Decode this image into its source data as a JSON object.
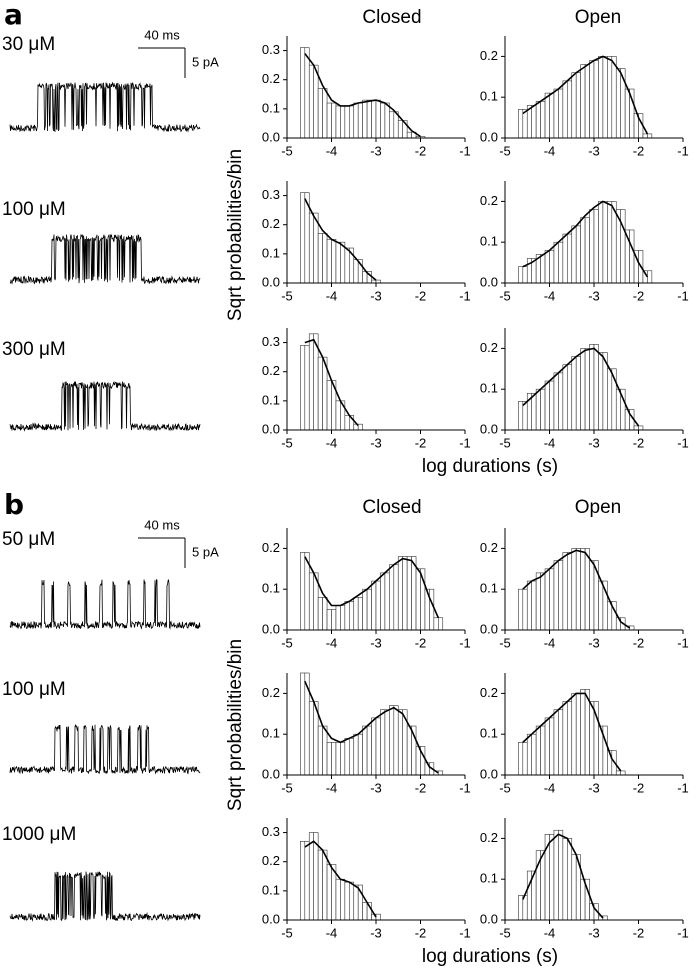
{
  "figure": {
    "panels": [
      {
        "label": "a",
        "scale_time": "40 ms",
        "scale_current": "5 pA",
        "column_titles": [
          "Closed",
          "Open"
        ],
        "concentrations": [
          "30 μM",
          "100 μM",
          "300 μM"
        ],
        "y_label": "Sqrt probabilities/bin",
        "x_label": "log durations (s)"
      },
      {
        "label": "b",
        "scale_time": "40 ms",
        "scale_current": "5 pA",
        "column_titles": [
          "Closed",
          "Open"
        ],
        "concentrations": [
          "50 μM",
          "100 μM",
          "1000 μM"
        ],
        "y_label": "Sqrt probabilities/bin",
        "x_label": "log durations (s)"
      }
    ]
  },
  "chart_data": [
    {
      "type": "histogram",
      "bins": [
        -4.7,
        -4.5,
        -4.3,
        -4.1,
        -3.9,
        -3.7,
        -3.5,
        -3.3,
        -3.1,
        -2.9,
        -2.7,
        -2.5,
        -2.3,
        -2.1,
        -1.9
      ],
      "values": [
        0.31,
        0.25,
        0.17,
        0.12,
        0.11,
        0.11,
        0.12,
        0.13,
        0.13,
        0.12,
        0.09,
        0.06,
        0.02,
        0.005
      ],
      "fit": {
        "x": [
          -4.6,
          -4.4,
          -4.2,
          -4.0,
          -3.8,
          -3.6,
          -3.4,
          -3.2,
          -3.0,
          -2.8,
          -2.6,
          -2.4,
          -2.2,
          -2.0
        ],
        "values": [
          0.29,
          0.25,
          0.18,
          0.13,
          0.11,
          0.11,
          0.12,
          0.125,
          0.13,
          0.12,
          0.095,
          0.06,
          0.025,
          0.005
        ]
      },
      "xlim": [
        -5,
        -1
      ],
      "xticks": [
        -5,
        -4,
        -3,
        -2,
        -1
      ],
      "ylim": [
        0,
        0.35
      ],
      "yticks": [
        {
          "value": 0,
          "label": "0.0"
        },
        0.1,
        0.2,
        0.3
      ]
    },
    {
      "type": "histogram",
      "bins": [
        -4.7,
        -4.5,
        -4.3,
        -4.1,
        -3.9,
        -3.7,
        -3.5,
        -3.3,
        -3.1,
        -2.9,
        -2.7,
        -2.5,
        -2.3,
        -2.1,
        -1.9,
        -1.7
      ],
      "values": [
        0.07,
        0.08,
        0.09,
        0.11,
        0.12,
        0.14,
        0.16,
        0.18,
        0.19,
        0.2,
        0.2,
        0.17,
        0.12,
        0.06,
        0.01
      ],
      "fit": {
        "x": [
          -4.6,
          -4.4,
          -4.2,
          -4.0,
          -3.8,
          -3.6,
          -3.4,
          -3.2,
          -3.0,
          -2.8,
          -2.6,
          -2.4,
          -2.2,
          -2.0,
          -1.8
        ],
        "values": [
          0.06,
          0.075,
          0.09,
          0.105,
          0.12,
          0.14,
          0.16,
          0.175,
          0.19,
          0.2,
          0.19,
          0.16,
          0.11,
          0.05,
          0.01
        ]
      },
      "xlim": [
        -5,
        -1
      ],
      "xticks": [
        -5,
        -4,
        -3,
        -2,
        -1
      ],
      "ylim": [
        0,
        0.25
      ],
      "yticks": [
        {
          "value": 0,
          "label": "0.0"
        },
        0.1,
        0.2
      ]
    },
    {
      "type": "histogram",
      "bins": [
        -4.7,
        -4.5,
        -4.3,
        -4.1,
        -3.9,
        -3.7,
        -3.5,
        -3.3,
        -3.1,
        -2.9
      ],
      "values": [
        0.31,
        0.24,
        0.17,
        0.15,
        0.14,
        0.12,
        0.08,
        0.04,
        0.01
      ],
      "fit": {
        "x": [
          -4.6,
          -4.4,
          -4.2,
          -4.0,
          -3.8,
          -3.6,
          -3.4,
          -3.2,
          -3.0
        ],
        "values": [
          0.29,
          0.23,
          0.18,
          0.15,
          0.135,
          0.11,
          0.075,
          0.035,
          0.01
        ]
      },
      "xlim": [
        -5,
        -1
      ],
      "xticks": [
        -5,
        -4,
        -3,
        -2,
        -1
      ],
      "ylim": [
        0,
        0.35
      ],
      "yticks": [
        {
          "value": 0,
          "label": "0.0"
        },
        0.1,
        0.2,
        0.3
      ]
    },
    {
      "type": "histogram",
      "bins": [
        -4.7,
        -4.5,
        -4.3,
        -4.1,
        -3.9,
        -3.7,
        -3.5,
        -3.3,
        -3.1,
        -2.9,
        -2.7,
        -2.5,
        -2.3,
        -2.1,
        -1.9,
        -1.7
      ],
      "values": [
        0.04,
        0.06,
        0.07,
        0.08,
        0.1,
        0.12,
        0.14,
        0.16,
        0.18,
        0.2,
        0.2,
        0.18,
        0.13,
        0.08,
        0.03
      ],
      "fit": {
        "x": [
          -4.6,
          -4.4,
          -4.2,
          -4.0,
          -3.8,
          -3.6,
          -3.4,
          -3.2,
          -3.0,
          -2.8,
          -2.6,
          -2.4,
          -2.2,
          -2.0,
          -1.8
        ],
        "values": [
          0.04,
          0.05,
          0.065,
          0.08,
          0.1,
          0.12,
          0.14,
          0.165,
          0.185,
          0.2,
          0.19,
          0.15,
          0.1,
          0.05,
          0.015
        ]
      },
      "xlim": [
        -5,
        -1
      ],
      "xticks": [
        -5,
        -4,
        -3,
        -2,
        -1
      ],
      "ylim": [
        0,
        0.25
      ],
      "yticks": [
        {
          "value": 0,
          "label": "0.0"
        },
        0.1,
        0.2
      ]
    },
    {
      "type": "histogram",
      "bins": [
        -4.7,
        -4.5,
        -4.3,
        -4.1,
        -3.9,
        -3.7,
        -3.5,
        -3.3
      ],
      "values": [
        0.29,
        0.33,
        0.25,
        0.17,
        0.1,
        0.05,
        0.02
      ],
      "fit": {
        "x": [
          -4.6,
          -4.4,
          -4.2,
          -4.0,
          -3.8,
          -3.6,
          -3.4
        ],
        "values": [
          0.3,
          0.31,
          0.25,
          0.17,
          0.1,
          0.05,
          0.015
        ]
      },
      "xlim": [
        -5,
        -1
      ],
      "xticks": [
        -5,
        -4,
        -3,
        -2,
        -1
      ],
      "ylim": [
        0,
        0.35
      ],
      "yticks": [
        {
          "value": 0,
          "label": "0.0"
        },
        0.1,
        0.2,
        0.3
      ]
    },
    {
      "type": "histogram",
      "bins": [
        -4.7,
        -4.5,
        -4.3,
        -4.1,
        -3.9,
        -3.7,
        -3.5,
        -3.3,
        -3.1,
        -2.9,
        -2.7,
        -2.5,
        -2.3,
        -2.1,
        -1.9
      ],
      "values": [
        0.07,
        0.09,
        0.1,
        0.12,
        0.14,
        0.16,
        0.18,
        0.2,
        0.21,
        0.19,
        0.15,
        0.1,
        0.05,
        0.01
      ],
      "fit": {
        "x": [
          -4.6,
          -4.4,
          -4.2,
          -4.0,
          -3.8,
          -3.6,
          -3.4,
          -3.2,
          -3.0,
          -2.8,
          -2.6,
          -2.4,
          -2.2,
          -2.0
        ],
        "values": [
          0.06,
          0.08,
          0.1,
          0.12,
          0.14,
          0.16,
          0.18,
          0.195,
          0.2,
          0.18,
          0.14,
          0.09,
          0.04,
          0.01
        ]
      },
      "xlim": [
        -5,
        -1
      ],
      "xticks": [
        -5,
        -4,
        -3,
        -2,
        -1
      ],
      "ylim": [
        0,
        0.25
      ],
      "yticks": [
        {
          "value": 0,
          "label": "0.0"
        },
        0.1,
        0.2
      ]
    },
    {
      "type": "histogram",
      "bins": [
        -4.7,
        -4.5,
        -4.3,
        -4.1,
        -3.9,
        -3.7,
        -3.5,
        -3.3,
        -3.1,
        -2.9,
        -2.7,
        -2.5,
        -2.3,
        -2.1,
        -1.9,
        -1.7,
        -1.5
      ],
      "values": [
        0.19,
        0.14,
        0.08,
        0.05,
        0.06,
        0.07,
        0.08,
        0.1,
        0.12,
        0.14,
        0.16,
        0.18,
        0.18,
        0.15,
        0.1,
        0.03
      ],
      "fit": {
        "x": [
          -4.6,
          -4.4,
          -4.2,
          -4.0,
          -3.8,
          -3.6,
          -3.4,
          -3.2,
          -3.0,
          -2.8,
          -2.6,
          -2.4,
          -2.2,
          -2.0,
          -1.8,
          -1.6
        ],
        "values": [
          0.18,
          0.14,
          0.09,
          0.06,
          0.06,
          0.07,
          0.085,
          0.1,
          0.12,
          0.14,
          0.16,
          0.175,
          0.17,
          0.14,
          0.08,
          0.03
        ]
      },
      "xlim": [
        -5,
        -1
      ],
      "xticks": [
        -5,
        -4,
        -3,
        -2,
        -1
      ],
      "ylim": [
        0,
        0.25
      ],
      "yticks": [
        {
          "value": 0,
          "label": "0.0"
        },
        0.1,
        0.2
      ]
    },
    {
      "type": "histogram",
      "bins": [
        -4.7,
        -4.5,
        -4.3,
        -4.1,
        -3.9,
        -3.7,
        -3.5,
        -3.3,
        -3.1,
        -2.9,
        -2.7,
        -2.5,
        -2.3,
        -2.1
      ],
      "values": [
        0.1,
        0.12,
        0.14,
        0.15,
        0.17,
        0.19,
        0.2,
        0.2,
        0.17,
        0.12,
        0.07,
        0.03,
        0.01
      ],
      "fit": {
        "x": [
          -4.6,
          -4.4,
          -4.2,
          -4.0,
          -3.8,
          -3.6,
          -3.4,
          -3.2,
          -3.0,
          -2.8,
          -2.6,
          -2.4,
          -2.2
        ],
        "values": [
          0.1,
          0.12,
          0.13,
          0.15,
          0.17,
          0.185,
          0.195,
          0.19,
          0.16,
          0.11,
          0.06,
          0.02,
          0.005
        ]
      },
      "xlim": [
        -5,
        -1
      ],
      "xticks": [
        -5,
        -4,
        -3,
        -2,
        -1
      ],
      "ylim": [
        0,
        0.25
      ],
      "yticks": [
        {
          "value": 0,
          "label": "0.0"
        },
        0.1,
        0.2
      ]
    },
    {
      "type": "histogram",
      "bins": [
        -4.7,
        -4.5,
        -4.3,
        -4.1,
        -3.9,
        -3.7,
        -3.5,
        -3.3,
        -3.1,
        -2.9,
        -2.7,
        -2.5,
        -2.3,
        -2.1,
        -1.9,
        -1.7,
        -1.5
      ],
      "values": [
        0.25,
        0.18,
        0.12,
        0.08,
        0.08,
        0.09,
        0.1,
        0.12,
        0.14,
        0.16,
        0.17,
        0.16,
        0.12,
        0.07,
        0.03,
        0.01
      ],
      "fit": {
        "x": [
          -4.6,
          -4.4,
          -4.2,
          -4.0,
          -3.8,
          -3.6,
          -3.4,
          -3.2,
          -3.0,
          -2.8,
          -2.6,
          -2.4,
          -2.2,
          -2.0,
          -1.8,
          -1.6
        ],
        "values": [
          0.23,
          0.18,
          0.12,
          0.09,
          0.08,
          0.09,
          0.1,
          0.12,
          0.14,
          0.155,
          0.165,
          0.15,
          0.11,
          0.06,
          0.02,
          0.005
        ]
      },
      "xlim": [
        -5,
        -1
      ],
      "xticks": [
        -5,
        -4,
        -3,
        -2,
        -1
      ],
      "ylim": [
        0,
        0.25
      ],
      "yticks": [
        {
          "value": 0,
          "label": "0.0"
        },
        0.1,
        0.2
      ]
    },
    {
      "type": "histogram",
      "bins": [
        -4.7,
        -4.5,
        -4.3,
        -4.1,
        -3.9,
        -3.7,
        -3.5,
        -3.3,
        -3.1,
        -2.9,
        -2.7,
        -2.5,
        -2.3
      ],
      "values": [
        0.08,
        0.1,
        0.12,
        0.14,
        0.16,
        0.18,
        0.2,
        0.21,
        0.18,
        0.12,
        0.06,
        0.01
      ],
      "fit": {
        "x": [
          -4.6,
          -4.4,
          -4.2,
          -4.0,
          -3.8,
          -3.6,
          -3.4,
          -3.2,
          -3.0,
          -2.8,
          -2.6,
          -2.4
        ],
        "values": [
          0.08,
          0.1,
          0.12,
          0.14,
          0.16,
          0.18,
          0.2,
          0.2,
          0.16,
          0.1,
          0.04,
          0.01
        ]
      },
      "xlim": [
        -5,
        -1
      ],
      "xticks": [
        -5,
        -4,
        -3,
        -2,
        -1
      ],
      "ylim": [
        0,
        0.25
      ],
      "yticks": [
        {
          "value": 0,
          "label": "0.0"
        },
        0.1,
        0.2
      ]
    },
    {
      "type": "histogram",
      "bins": [
        -4.7,
        -4.5,
        -4.3,
        -4.1,
        -3.9,
        -3.7,
        -3.5,
        -3.3,
        -3.1,
        -2.9
      ],
      "values": [
        0.27,
        0.3,
        0.24,
        0.19,
        0.14,
        0.13,
        0.12,
        0.06,
        0.02
      ],
      "fit": {
        "x": [
          -4.6,
          -4.4,
          -4.2,
          -4.0,
          -3.8,
          -3.6,
          -3.4,
          -3.2,
          -3.0
        ],
        "values": [
          0.25,
          0.27,
          0.24,
          0.18,
          0.14,
          0.13,
          0.11,
          0.06,
          0.01
        ]
      },
      "xlim": [
        -5,
        -1
      ],
      "xticks": [
        -5,
        -4,
        -3,
        -2,
        -1
      ],
      "ylim": [
        0,
        0.35
      ],
      "yticks": [
        {
          "value": 0,
          "label": "0.0"
        },
        0.1,
        0.2,
        0.3
      ]
    },
    {
      "type": "histogram",
      "bins": [
        -4.7,
        -4.5,
        -4.3,
        -4.1,
        -3.9,
        -3.7,
        -3.5,
        -3.3,
        -3.1,
        -2.9,
        -2.7
      ],
      "values": [
        0.06,
        0.12,
        0.17,
        0.21,
        0.22,
        0.2,
        0.16,
        0.1,
        0.04,
        0.01
      ],
      "fit": {
        "x": [
          -4.6,
          -4.4,
          -4.2,
          -4.0,
          -3.8,
          -3.6,
          -3.4,
          -3.2,
          -3.0,
          -2.8
        ],
        "values": [
          0.05,
          0.1,
          0.15,
          0.19,
          0.21,
          0.2,
          0.16,
          0.09,
          0.03,
          0.005
        ]
      },
      "xlim": [
        -5,
        -1
      ],
      "xticks": [
        -5,
        -4,
        -3,
        -2,
        -1
      ],
      "ylim": [
        0,
        0.25
      ],
      "yticks": [
        {
          "value": 0,
          "label": "0.0"
        },
        0.1,
        0.2
      ]
    }
  ]
}
